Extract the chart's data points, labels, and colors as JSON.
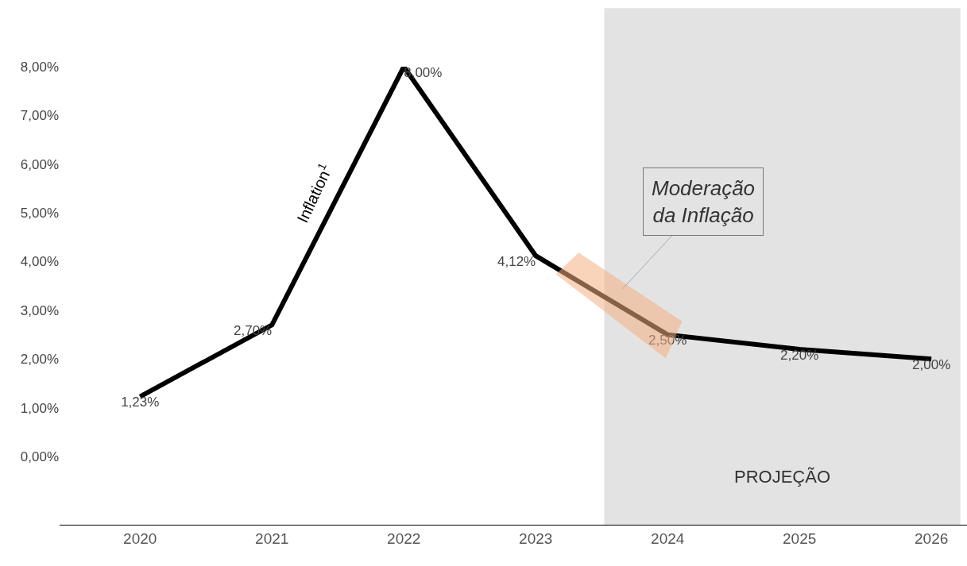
{
  "chart_data": {
    "type": "line",
    "x": [
      2020,
      2021,
      2022,
      2023,
      2024,
      2025,
      2026
    ],
    "series": [
      {
        "name": "Inflation$^{1}$",
        "color": "#000000",
        "values": [
          1.23,
          2.7,
          8.0,
          4.12,
          2.5,
          2.2,
          2.0
        ],
        "value_labels": [
          "1,23%",
          "2,70%",
          "8,00%",
          "4,12%",
          "2,50%",
          "2,20%",
          "2,00%"
        ]
      }
    ],
    "xlim": [
      2019.39,
      2026.27
    ],
    "xticks": [
      2020,
      2021,
      2022,
      2023,
      2024,
      2025,
      2026
    ],
    "ylim": [
      -1.4,
      8
    ],
    "yticks": [
      {
        "value": 0,
        "label": "0,00%"
      },
      {
        "value": 1,
        "label": "1,00%"
      },
      {
        "value": 2,
        "label": "2,00%"
      },
      {
        "value": 3,
        "label": "3,00%"
      },
      {
        "value": 4,
        "label": "4,00%"
      },
      {
        "value": 5,
        "label": "5,00%"
      },
      {
        "value": 6,
        "label": "6,00%"
      },
      {
        "value": 7,
        "label": "7,00%"
      },
      {
        "value": 8,
        "label": "8,00%"
      }
    ],
    "bands": [
      {
        "axis": "x",
        "from": 2023.52,
        "to": 2026.22,
        "label": "PROJEÇÃO",
        "color": "#e3e3e3"
      }
    ],
    "annotations": [
      "Moderação da Inflação"
    ],
    "grid": false,
    "legend": false,
    "marker": "none",
    "line_style": "solid"
  }
}
